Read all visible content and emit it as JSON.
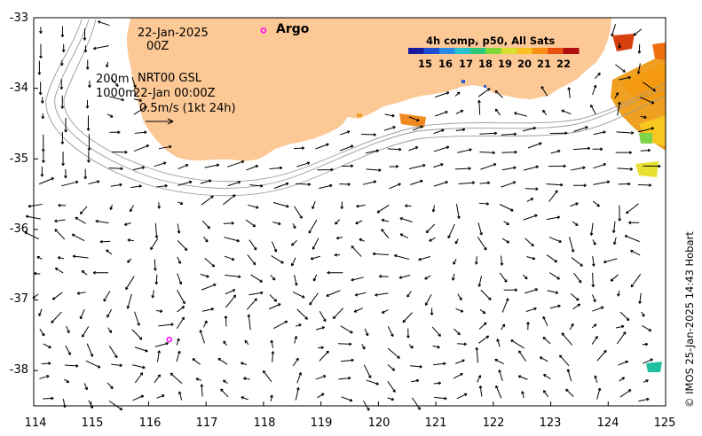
{
  "map": {
    "date": "22-Jan-2025",
    "time": "00Z",
    "depth_top": "200m",
    "depth_bottom": "1000m",
    "model": "NRT00 GSL",
    "model_time": "22-Jan 00:00Z",
    "scale_label": "0.5m/s (1kt 24h)",
    "argo_label": "Argo",
    "legend_title": "4h comp, p50, All Sats",
    "credit": "© IMOS 25-Jan-2025 14:43 Hobart",
    "land_color": "#fcc896",
    "argo_color": "#ff00ff"
  },
  "colorbar_ticks": [
    "15",
    "16",
    "17",
    "18",
    "19",
    "20",
    "21",
    "22"
  ],
  "lat_ticks": [
    "-33",
    "-34",
    "-35",
    "-36",
    "-37",
    "-38"
  ],
  "lon_ticks": [
    "114",
    "115",
    "116",
    "117",
    "118",
    "119",
    "120",
    "121",
    "122",
    "123",
    "124",
    "125"
  ],
  "argo_floats": [
    {
      "lon": 118.0,
      "lat": -33.18
    },
    {
      "lon": 116.36,
      "lat": -37.56
    }
  ]
}
